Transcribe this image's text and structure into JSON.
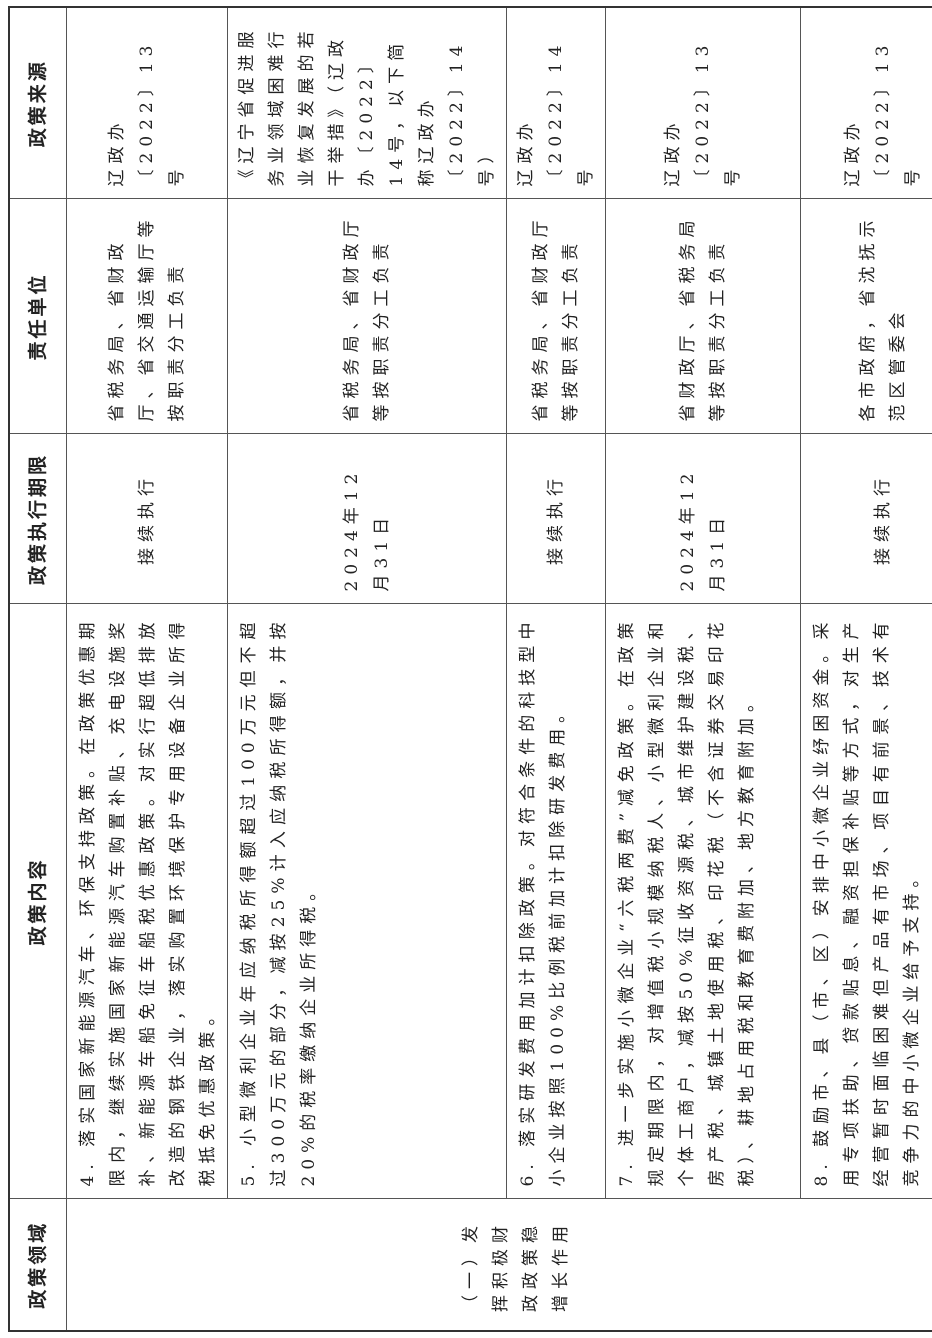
{
  "headers": [
    "政策领域",
    "政策内容",
    "政策执行期限",
    "责任单位",
    "政策来源"
  ],
  "domain": "（一）发挥积极财政政策稳增长作用",
  "rows": [
    {
      "content": "4. 落实国家新能源汽车、环保支持政策。在政策优惠期限内，继续实施国家新能源汽车购置补贴、充电设施奖补、新能源车船免征车船税优惠政策。对实行超低排放改造的钢铁企业，落实购置环境保护专用设备企业所得税抵免优惠政策。",
      "term": "接续执行",
      "unit": "省税务局、省财政厅、省交通运输厅等按职责分工负责",
      "source": "辽政办〔2022〕13号"
    },
    {
      "content": "5. 小型微利企业年应纳税所得额超过100万元但不超过300万元的部分，减按25%计入应纳税所得额，并按20%的税率缴纳企业所得税。",
      "term": "2024年12月31日",
      "unit": "省税务局、省财政厅等按职责分工负责",
      "source": "《辽宁省促进服务业领域困难行业恢复发展的若干举措》（辽政办〔2022〕14号，以下简称辽政办〔2022〕14号）"
    },
    {
      "content": "6. 落实研发费用加计扣除政策。对符合条件的科技型中小企业按照100%比例税前加计扣除研发费用。",
      "term": "接续执行",
      "unit": "省税务局、省财政厅等按职责分工负责",
      "source": "辽政办〔2022〕14号"
    },
    {
      "content": "7. 进一步实施小微企业“六税两费”减免政策。在政策规定期限内，对增值税小规模纳税人、小型微利企业和个体工商户，减按50%征收资源税、城市维护建设税、房产税、城镇土地使用税、印花税（不含证券交易印花税）、耕地占用税和教育费附加、地方教育附加。",
      "term": "2024年12月31日",
      "unit": "省财政厅、省税务局等按职责分工负责",
      "source": "辽政办〔2022〕13号"
    },
    {
      "content": "8. 鼓励市、县（市、区）安排中小微企业纾困资金。采用专项扶助、贷款贴息、融资担保补贴等方式，对生产经营暂时面临困难但产品有市场、项目有前景、技术有竞争力的中小微企业给予支持。",
      "term": "接续执行",
      "unit": "各市政府，省沈抚示范区管委会",
      "source": "辽政办〔2022〕13号"
    }
  ]
}
